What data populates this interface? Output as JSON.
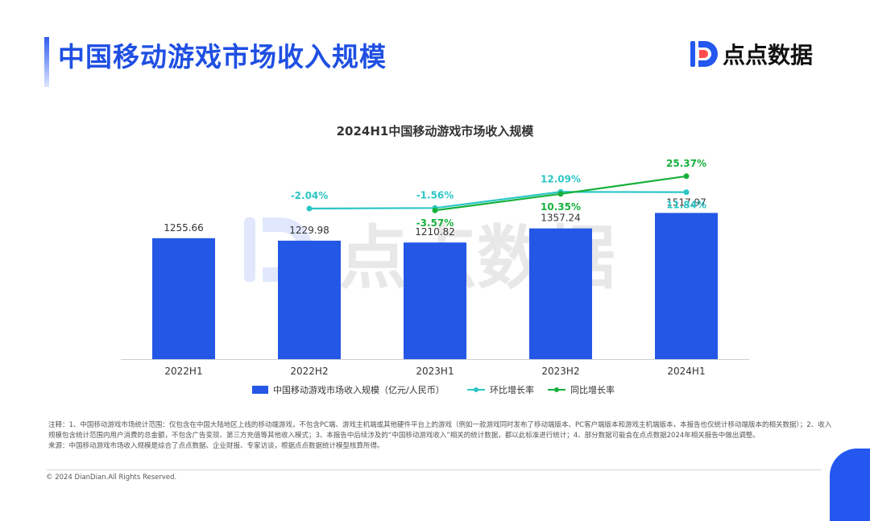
{
  "header": {
    "title": "中国移动游戏市场收入规模",
    "brand": "点点数据"
  },
  "watermark": "点点数据",
  "chart_data": {
    "type": "bar",
    "title": "2024H1中国移动游戏市场收入规模",
    "categories": [
      "2022H1",
      "2022H2",
      "2023H1",
      "2023H2",
      "2024H1"
    ],
    "series": [
      {
        "name": "中国移动游戏市场收入规模（亿元/人民币）",
        "type": "bar",
        "color": "#2457e6",
        "values": [
          1255.66,
          1229.98,
          1210.82,
          1357.24,
          1517.97
        ],
        "labels": [
          "1255.66",
          "1229.98",
          "1210.82",
          "1357.24",
          "1517.97"
        ]
      },
      {
        "name": "环比增长率",
        "type": "line",
        "color": "#2cc6c6",
        "values": [
          null,
          -2.04,
          -1.56,
          12.09,
          11.84
        ],
        "labels": [
          "",
          "-2.04%",
          "-1.56%",
          "12.09%",
          "11.84%"
        ]
      },
      {
        "name": "同比增长率",
        "type": "line",
        "color": "#16b13c",
        "values": [
          null,
          null,
          -3.57,
          10.35,
          25.37
        ],
        "labels": [
          "",
          "",
          "-3.57%",
          "10.35%",
          "25.37%"
        ]
      }
    ],
    "ylim_bar": [
      0,
      2600
    ],
    "ylim_rate": [
      -30,
      45
    ],
    "legend_position": "bottom"
  },
  "footer": {
    "note": "注释：1、中国移动游戏市场统计范围：仅包含在中国大陆地区上线的移动端游戏，不包含PC端、游戏主机端或其他硬件平台上的游戏（例如一款游戏同时发布了移动端版本、PC客户端版本和游戏主机端版本，本报告也仅统计移动端版本的相关数据）；2、收入规模包含统计范围内用户消费的总金额，不包含广告变现、第三方充值等其他收入模式；3、本报告中后续涉及的“中国移动游戏收入”相关的统计数据，都以此标准进行统计；4、部分数据可能会在点点数据2024年相关报告中做出调整。",
    "source": "来源：中国移动游戏市场收入规模是综合了点点数据、企业财报、专家访谈，根据点点数据统计模型核算所得。",
    "copyright": "© 2024 DianDian.All Rights Reserved."
  }
}
